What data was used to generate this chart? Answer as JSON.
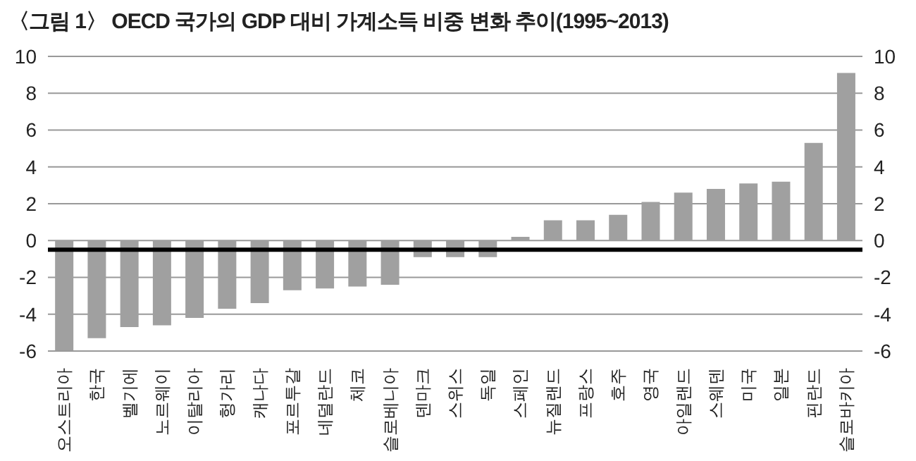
{
  "chart_data": {
    "type": "bar",
    "title": "〈그림 1〉 OECD 국가의 GDP 대비 가계소득 비중 변화 추이(1995~2013)",
    "categories": [
      "오스트리아",
      "한국",
      "벨기에",
      "노르웨이",
      "이탈리아",
      "헝가리",
      "캐나다",
      "포르투갈",
      "네덜란드",
      "체코",
      "슬로베니아",
      "덴마크",
      "스위스",
      "독일",
      "스페인",
      "뉴질랜드",
      "프랑스",
      "호주",
      "영국",
      "아일랜드",
      "스웨덴",
      "미국",
      "일본",
      "핀란드",
      "슬로바키아"
    ],
    "values": [
      -6.0,
      -5.3,
      -4.7,
      -4.6,
      -4.2,
      -3.7,
      -3.4,
      -2.7,
      -2.6,
      -2.5,
      -2.4,
      -0.9,
      -0.9,
      -0.9,
      0.2,
      1.1,
      1.1,
      1.4,
      2.1,
      2.6,
      2.8,
      3.1,
      3.2,
      5.3,
      9.1
    ],
    "color": "#a0a0a0",
    "ylim": [
      -6,
      10
    ],
    "yticks": [
      -6,
      -4,
      -2,
      0,
      2,
      4,
      6,
      8,
      10
    ],
    "y2lim": [
      -6,
      10
    ],
    "y2ticks": [
      -6,
      -4,
      -2,
      0,
      2,
      4,
      6,
      8,
      10
    ],
    "grid": "y",
    "ref_lines": [
      {
        "axis": "y",
        "value": -0.5,
        "color": "#000000"
      }
    ]
  }
}
